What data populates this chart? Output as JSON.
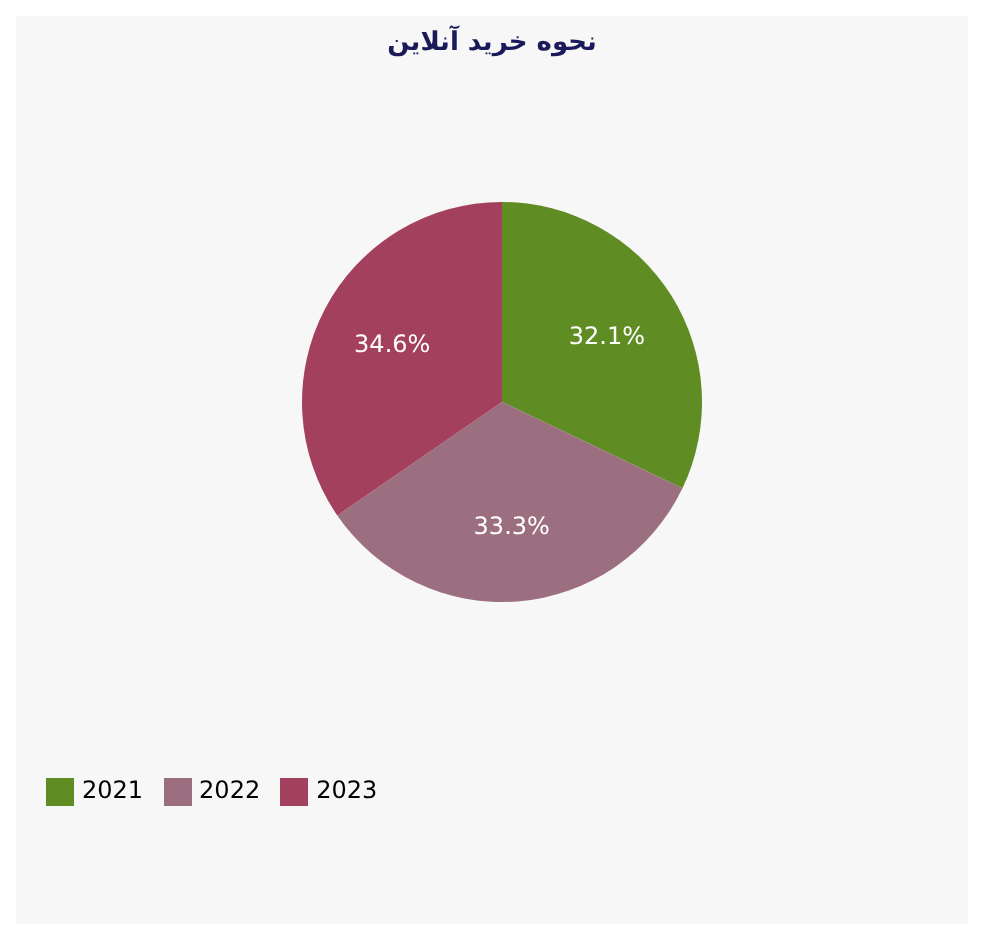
{
  "chart_data": {
    "type": "pie",
    "title": "نحوه خرید آنلاین",
    "categories": [
      "2021",
      "2022",
      "2023"
    ],
    "values": [
      32.1,
      33.3,
      34.6
    ],
    "value_labels": [
      "32.1%",
      "33.3%",
      "34.6%"
    ],
    "colors": [
      "#5f8c23",
      "#9c6f80",
      "#a3405e"
    ],
    "legend": "bottom left"
  }
}
